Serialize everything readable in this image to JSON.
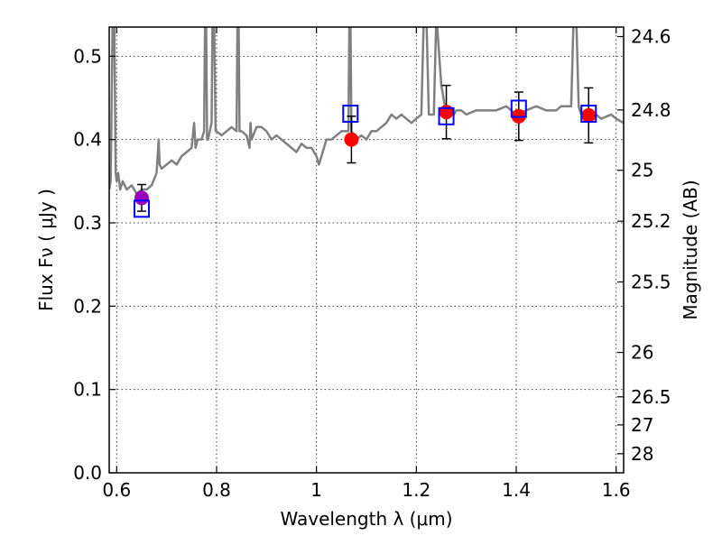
{
  "chart_data": {
    "type": "line",
    "xlabel": "Wavelength  λ (μm)",
    "ylabel_left": "Flux  Fν  ( μJy )",
    "ylabel_right": "Magnitude (AB)",
    "xlim": [
      0.585,
      1.615
    ],
    "ylim": [
      0.0,
      0.535
    ],
    "x_ticks": [
      0.6,
      0.8,
      1.0,
      1.2,
      1.4,
      1.6
    ],
    "x_tick_labels": [
      "0.6",
      "0.8",
      "1",
      "1.2",
      "1.4",
      "1.6"
    ],
    "y_ticks": [
      0.0,
      0.1,
      0.2,
      0.3,
      0.4,
      0.5
    ],
    "y_tick_labels": [
      "0.0",
      "0.1",
      "0.2",
      "0.3",
      "0.4",
      "0.5"
    ],
    "right_axis_ticks": [
      {
        "label": "24.6",
        "flux": 0.5236
      },
      {
        "label": "24.8",
        "flux": 0.4355
      },
      {
        "label": "25",
        "flux": 0.3631
      },
      {
        "label": "25.2",
        "flux": 0.302
      },
      {
        "label": "25.5",
        "flux": 0.2291
      },
      {
        "label": "26",
        "flux": 0.1445
      },
      {
        "label": "26.5",
        "flux": 0.0912
      },
      {
        "label": "27",
        "flux": 0.0575
      },
      {
        "label": "28",
        "flux": 0.0229
      }
    ],
    "grid": true,
    "series": [
      {
        "type": "line",
        "color": "#808080",
        "x": [
          0.585,
          0.588,
          0.592,
          0.595,
          0.598,
          0.6,
          0.603,
          0.607,
          0.612,
          0.62,
          0.63,
          0.64,
          0.65,
          0.66,
          0.67,
          0.68,
          0.684,
          0.686,
          0.69,
          0.7,
          0.71,
          0.72,
          0.73,
          0.74,
          0.75,
          0.755,
          0.758,
          0.762,
          0.77,
          0.775,
          0.777,
          0.779,
          0.781,
          0.783,
          0.79,
          0.792,
          0.795,
          0.798,
          0.8,
          0.81,
          0.82,
          0.83,
          0.84,
          0.842,
          0.844,
          0.846,
          0.85,
          0.86,
          0.866,
          0.868,
          0.87,
          0.88,
          0.89,
          0.9,
          0.91,
          0.92,
          0.93,
          0.94,
          0.95,
          0.96,
          0.97,
          0.98,
          0.99,
          1.0,
          1.005,
          1.01,
          1.02,
          1.03,
          1.04,
          1.05,
          1.06,
          1.064,
          1.066,
          1.068,
          1.07,
          1.08,
          1.09,
          1.1,
          1.11,
          1.12,
          1.13,
          1.14,
          1.15,
          1.16,
          1.17,
          1.18,
          1.19,
          1.2,
          1.21,
          1.215,
          1.22,
          1.225,
          1.235,
          1.24,
          1.25,
          1.26,
          1.27,
          1.275,
          1.28,
          1.29,
          1.3,
          1.32,
          1.34,
          1.36,
          1.38,
          1.4,
          1.42,
          1.44,
          1.46,
          1.48,
          1.49,
          1.5,
          1.51,
          1.515,
          1.52,
          1.525,
          1.53,
          1.55,
          1.57,
          1.59,
          1.6,
          1.615
        ],
        "y": [
          0.34,
          0.35,
          0.55,
          0.55,
          0.36,
          0.35,
          0.36,
          0.34,
          0.35,
          0.34,
          0.345,
          0.335,
          0.34,
          0.34,
          0.345,
          0.36,
          0.4,
          0.37,
          0.365,
          0.37,
          0.375,
          0.37,
          0.38,
          0.385,
          0.39,
          0.42,
          0.39,
          0.4,
          0.4,
          0.41,
          0.55,
          0.55,
          0.4,
          0.4,
          0.42,
          0.55,
          0.55,
          0.41,
          0.41,
          0.405,
          0.41,
          0.415,
          0.41,
          0.55,
          0.55,
          0.41,
          0.41,
          0.405,
          0.39,
          0.42,
          0.4,
          0.415,
          0.415,
          0.41,
          0.4,
          0.405,
          0.4,
          0.395,
          0.39,
          0.385,
          0.395,
          0.39,
          0.39,
          0.38,
          0.37,
          0.38,
          0.4,
          0.4,
          0.405,
          0.41,
          0.41,
          0.41,
          0.55,
          0.55,
          0.41,
          0.4,
          0.405,
          0.4,
          0.41,
          0.41,
          0.415,
          0.42,
          0.43,
          0.425,
          0.43,
          0.425,
          0.42,
          0.425,
          0.43,
          0.55,
          0.55,
          0.43,
          0.43,
          0.55,
          0.465,
          0.43,
          0.43,
          0.43,
          0.435,
          0.435,
          0.43,
          0.435,
          0.435,
          0.435,
          0.44,
          0.43,
          0.435,
          0.44,
          0.435,
          0.435,
          0.44,
          0.44,
          0.44,
          0.55,
          0.55,
          0.44,
          0.43,
          0.435,
          0.425,
          0.43,
          0.425,
          0.42
        ]
      },
      {
        "type": "scatter",
        "name": "",
        "color": "#ff0000",
        "x": [
          1.07,
          1.26,
          1.405,
          1.545
        ],
        "y": [
          0.4,
          0.433,
          0.428,
          0.429
        ],
        "yerr": [
          0.028,
          0.032,
          0.029,
          0.033
        ]
      },
      {
        "type": "scatter",
        "name": "",
        "color": "#9900bb",
        "x": [
          0.65
        ],
        "y": [
          0.33
        ],
        "yerr": [
          0.016
        ]
      },
      {
        "type": "scatter",
        "name": "",
        "marker": "square-open",
        "color": "#0000ff",
        "x": [
          0.65,
          1.068,
          1.26,
          1.405,
          1.545
        ],
        "y": [
          0.317,
          0.431,
          0.428,
          0.437,
          0.431
        ]
      }
    ]
  }
}
